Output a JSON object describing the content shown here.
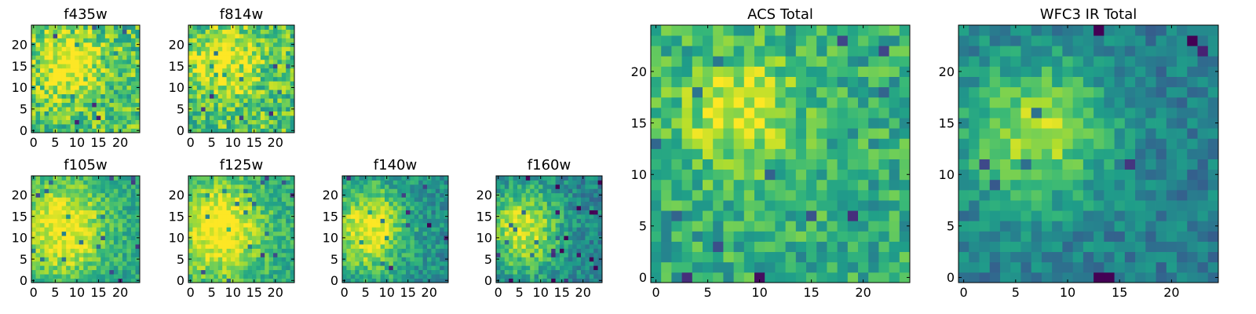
{
  "figure": {
    "chart_data": [
      {
        "type": "heatmap",
        "title": "f435w",
        "xticks": [
          0,
          5,
          10,
          15,
          20
        ],
        "yticks": [
          0,
          5,
          10,
          15,
          20
        ],
        "grid": false,
        "colormap": "viridis",
        "size": 25,
        "blob": [
          {
            "x": 8,
            "y": 16,
            "sx": 5,
            "sy": 5,
            "a": 0.35
          }
        ],
        "base": 0.72,
        "noise": 0.22,
        "seed": 11
      },
      {
        "type": "heatmap",
        "title": "f814w",
        "xticks": [
          0,
          5,
          10,
          15,
          20
        ],
        "yticks": [
          0,
          5,
          10,
          15,
          20
        ],
        "grid": false,
        "colormap": "viridis",
        "size": 25,
        "blob": [
          {
            "x": 8,
            "y": 16,
            "sx": 5,
            "sy": 5,
            "a": 0.35
          }
        ],
        "base": 0.72,
        "noise": 0.22,
        "seed": 23
      },
      {
        "type": "heatmap",
        "title": "f105w",
        "xticks": [
          0,
          5,
          10,
          15,
          20
        ],
        "yticks": [
          0,
          5,
          10,
          15,
          20
        ],
        "grid": false,
        "colormap": "viridis",
        "size": 25,
        "blob": [
          {
            "x": 7,
            "y": 12,
            "sx": 7,
            "sy": 8,
            "a": 0.45
          }
        ],
        "base": 0.58,
        "noise": 0.14,
        "seed": 37
      },
      {
        "type": "heatmap",
        "title": "f125w",
        "xticks": [
          0,
          5,
          10,
          15,
          20
        ],
        "yticks": [
          0,
          5,
          10,
          15,
          20
        ],
        "grid": false,
        "colormap": "viridis",
        "size": 25,
        "blob": [
          {
            "x": 7,
            "y": 12,
            "sx": 7,
            "sy": 8,
            "a": 0.45
          }
        ],
        "base": 0.6,
        "noise": 0.14,
        "seed": 41
      },
      {
        "type": "heatmap",
        "title": "f140w",
        "xticks": [
          0,
          5,
          10,
          15,
          20
        ],
        "yticks": [
          0,
          5,
          10,
          15,
          20
        ],
        "grid": false,
        "colormap": "viridis",
        "size": 25,
        "blob": [
          {
            "x": 6,
            "y": 12,
            "sx": 6,
            "sy": 7,
            "a": 0.5
          }
        ],
        "base": 0.5,
        "noise": 0.15,
        "seed": 53
      },
      {
        "type": "heatmap",
        "title": "f160w",
        "xticks": [
          0,
          5,
          10,
          15,
          20
        ],
        "yticks": [
          0,
          5,
          10,
          15,
          20
        ],
        "grid": false,
        "colormap": "viridis",
        "size": 25,
        "blob": [
          {
            "x": 6,
            "y": 12,
            "sx": 6,
            "sy": 7,
            "a": 0.5
          }
        ],
        "base": 0.45,
        "noise": 0.15,
        "seed": 67
      },
      {
        "type": "heatmap",
        "title": "ACS Total",
        "xticks": [
          0,
          5,
          10,
          15,
          20
        ],
        "yticks": [
          0,
          5,
          10,
          15,
          20
        ],
        "grid": false,
        "colormap": "viridis",
        "size": 25,
        "blob": [
          {
            "x": 8,
            "y": 16,
            "sx": 4,
            "sy": 4,
            "a": 0.35
          }
        ],
        "base": 0.62,
        "noise": 0.18,
        "seed": 79
      },
      {
        "type": "heatmap",
        "title": "WFC3 IR Total",
        "xticks": [
          0,
          5,
          10,
          15,
          20
        ],
        "yticks": [
          0,
          5,
          10,
          15,
          20
        ],
        "grid": false,
        "colormap": "viridis",
        "size": 25,
        "blob": [
          {
            "x": 7,
            "y": 14,
            "sx": 5,
            "sy": 5,
            "a": 0.45
          }
        ],
        "base": 0.42,
        "noise": 0.13,
        "seed": 97
      }
    ],
    "colors": {
      "viridis": [
        "#440154",
        "#482878",
        "#3e4989",
        "#31688e",
        "#26828e",
        "#1f9e89",
        "#35b779",
        "#6ece58",
        "#b5de2b",
        "#fde725"
      ],
      "axis": "#000000"
    }
  }
}
